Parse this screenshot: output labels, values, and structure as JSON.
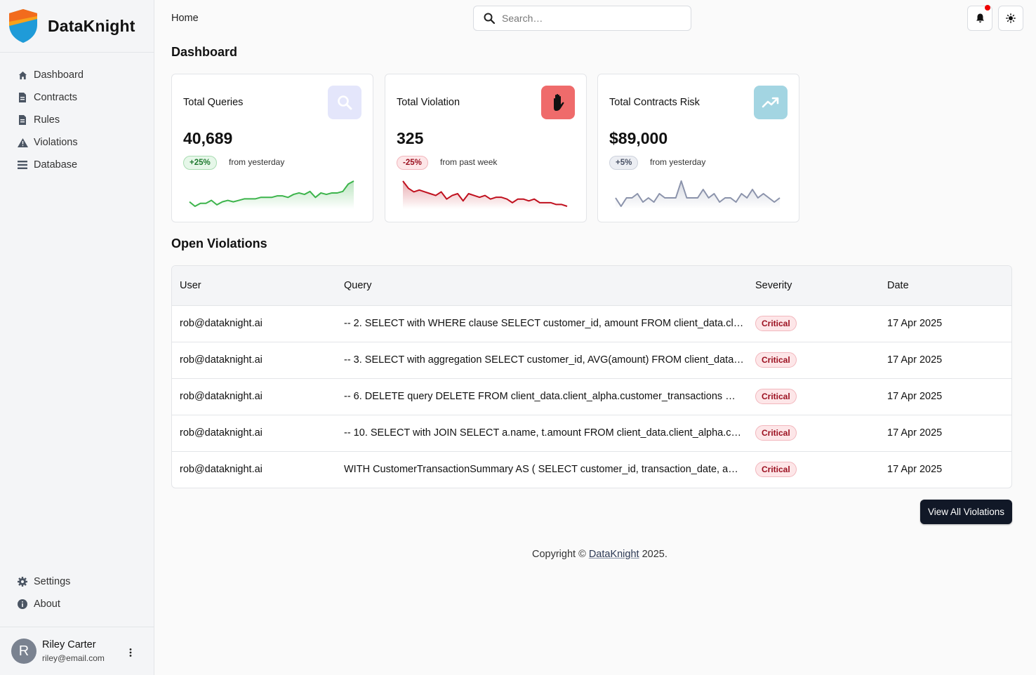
{
  "brand": {
    "name": "DataKnight"
  },
  "sidebar": {
    "items": [
      {
        "label": "Dashboard",
        "icon": "home-icon"
      },
      {
        "label": "Contracts",
        "icon": "document-icon"
      },
      {
        "label": "Rules",
        "icon": "document-icon"
      },
      {
        "label": "Violations",
        "icon": "warning-icon"
      },
      {
        "label": "Database",
        "icon": "list-icon"
      }
    ],
    "bottom_items": [
      {
        "label": "Settings",
        "icon": "gear-icon"
      },
      {
        "label": "About",
        "icon": "info-icon"
      }
    ],
    "user": {
      "initial": "R",
      "name": "Riley Carter",
      "email": "riley@email.com"
    }
  },
  "header": {
    "breadcrumb": "Home",
    "search_placeholder": "Search…",
    "notification_dot_color": "#e00000"
  },
  "page_title": "Dashboard",
  "cards": [
    {
      "title": "Total Queries",
      "value": "40,689",
      "badge": "+25%",
      "note": "from yesterday",
      "icon": "search-icon",
      "icon_bg": "#e4e6fb",
      "trend_color": "#3cb44b",
      "trend": [
        6,
        3,
        5,
        5,
        7,
        4,
        6,
        7,
        6,
        7,
        8,
        8,
        8,
        9,
        9,
        9,
        10,
        10,
        9,
        11,
        12,
        11,
        13,
        9,
        12,
        11,
        12,
        12,
        13,
        18,
        20
      ]
    },
    {
      "title": "Total Violation",
      "value": "325",
      "badge": "-25%",
      "note": "from past week",
      "icon": "hand-icon",
      "icon_bg": "#ef6b6b",
      "trend_color": "#c0101e",
      "trend": [
        16,
        12,
        10,
        11,
        10,
        9,
        8,
        10,
        6,
        8,
        9,
        5,
        9,
        8,
        7,
        8,
        6,
        7,
        7,
        6,
        4,
        6,
        6,
        5,
        6,
        4,
        4,
        4,
        3,
        3,
        2
      ]
    },
    {
      "title": "Total Contracts Risk",
      "value": "$89,000",
      "badge": "+5%",
      "note": "from yesterday",
      "icon": "trending-up-icon",
      "icon_bg": "#a3d5e2",
      "trend_color": "#8b93ab",
      "trend": [
        8,
        6,
        8,
        8,
        9,
        7,
        8,
        7,
        9,
        8,
        8,
        8,
        12,
        8,
        8,
        8,
        10,
        8,
        9,
        7,
        8,
        8,
        7,
        9,
        8,
        10,
        8,
        9,
        8,
        7,
        8
      ]
    }
  ],
  "violations": {
    "title": "Open Violations",
    "columns": [
      "User",
      "Query",
      "Severity",
      "Date"
    ],
    "rows": [
      {
        "user": "rob@dataknight.ai",
        "query": "-- 2. SELECT with WHERE clause SELECT customer_id, amount FROM client_data.clie…",
        "severity": "Critical",
        "date": "17 Apr 2025"
      },
      {
        "user": "rob@dataknight.ai",
        "query": "-- 3. SELECT with aggregation SELECT customer_id, AVG(amount) FROM client_data.cl…",
        "severity": "Critical",
        "date": "17 Apr 2025"
      },
      {
        "user": "rob@dataknight.ai",
        "query": "-- 6. DELETE query DELETE FROM client_data.client_alpha.customer_transactions WH…",
        "severity": "Critical",
        "date": "17 Apr 2025"
      },
      {
        "user": "rob@dataknight.ai",
        "query": "-- 10. SELECT with JOIN SELECT a.name, t.amount FROM client_data.client_alpha.cust…",
        "severity": "Critical",
        "date": "17 Apr 2025"
      },
      {
        "user": "rob@dataknight.ai",
        "query": "WITH CustomerTransactionSummary AS ( SELECT customer_id, transaction_date, amo…",
        "severity": "Critical",
        "date": "17 Apr 2025"
      }
    ],
    "view_all_label": "View All Violations"
  },
  "footer": {
    "prefix": "Copyright © ",
    "link": "DataKnight",
    "suffix": " 2025."
  }
}
